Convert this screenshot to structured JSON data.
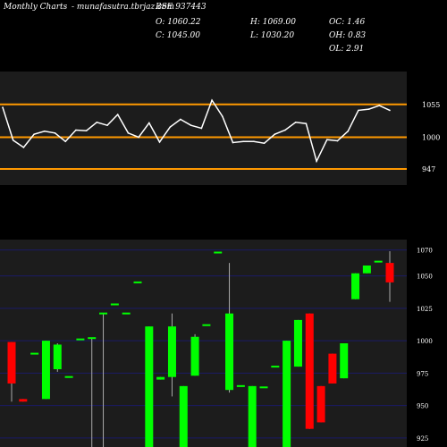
{
  "header": {
    "brand": "Monthly Charts",
    "site": "- munafasutra.tbrjaz.com",
    "symbol": "BSE 937443",
    "open_label": "O: 1060.22",
    "close_label": "C: 1045.00",
    "high_label": "H: 1069.00",
    "low_label": "L: 1030.20",
    "oc_label": "OC: 1.46",
    "oh_label": "OH: 0.83",
    "ol_label": "OL: 2.91"
  },
  "colors": {
    "background": "#000000",
    "line_panel_bg": "#1c1c1c",
    "candle_panel_bg": "#1c1c1c",
    "level_line": "#ff9900",
    "grid_line": "#1a1a66",
    "up_candle": "#00ff00",
    "down_candle": "#ff0000",
    "price_line": "#ffffff"
  },
  "chart_data": [
    {
      "type": "line",
      "reference_levels": [
        1055,
        1000,
        947
      ],
      "tick_labels": [
        "1055",
        "1000",
        "947"
      ],
      "ylim": [
        920,
        1110
      ],
      "series": [
        {
          "values": [
            1050,
            995,
            983,
            1005,
            1010,
            1007,
            993,
            1012,
            1011,
            1025,
            1020,
            1038,
            1007,
            1000,
            1024,
            992,
            1017,
            1030,
            1020,
            1015,
            1062,
            1035,
            991,
            993,
            993,
            990,
            1005,
            1012,
            1025,
            1023,
            960,
            996,
            994,
            1010,
            1045,
            1047,
            1053,
            1045
          ]
        }
      ]
    },
    {
      "type": "candlestick",
      "ylim": [
        918,
        1078
      ],
      "tick_values": [
        1070,
        1050,
        1025,
        1000,
        975,
        950,
        925
      ],
      "tick_labels": [
        "1070",
        "1050",
        "1025",
        "1000",
        "975",
        "950",
        "925"
      ],
      "candles": [
        {
          "open": 999,
          "close": 967,
          "high": 999,
          "low": 953,
          "dir": "down"
        },
        {
          "open": 955,
          "close": 953,
          "high": 955,
          "low": 953,
          "dir": "down"
        },
        {
          "open": 990,
          "close": 990,
          "high": 990,
          "low": 990,
          "dir": "up"
        },
        {
          "open": 955,
          "close": 1000,
          "high": 1000,
          "low": 955,
          "dir": "up"
        },
        {
          "open": 978,
          "close": 997,
          "high": 998,
          "low": 976,
          "dir": "up"
        },
        {
          "open": 972,
          "close": 972,
          "high": 972,
          "low": 972,
          "dir": "up"
        },
        {
          "open": 1001,
          "close": 1001,
          "high": 1001,
          "low": 1001,
          "dir": "up"
        },
        {
          "open": 1002,
          "close": 1002,
          "high": 1002,
          "low": 918,
          "dir": "up"
        },
        {
          "open": 1021,
          "close": 1021,
          "high": 1021,
          "low": 918,
          "dir": "up"
        },
        {
          "open": 1028,
          "close": 1028,
          "high": 1028,
          "low": 1028,
          "dir": "up"
        },
        {
          "open": 1021,
          "close": 1021,
          "high": 1021,
          "low": 1021,
          "dir": "up"
        },
        {
          "open": 1045,
          "close": 1045,
          "high": 1045,
          "low": 1045,
          "dir": "up"
        },
        {
          "open": 918,
          "close": 1011,
          "high": 1011,
          "low": 918,
          "dir": "up"
        },
        {
          "open": 970,
          "close": 972,
          "high": 972,
          "low": 970,
          "dir": "up"
        },
        {
          "open": 972,
          "close": 1011,
          "high": 1021,
          "low": 957,
          "dir": "up"
        },
        {
          "open": 918,
          "close": 965,
          "high": 965,
          "low": 918,
          "dir": "up"
        },
        {
          "open": 973,
          "close": 1003,
          "high": 1005,
          "low": 973,
          "dir": "up"
        },
        {
          "open": 1012,
          "close": 1012,
          "high": 1012,
          "low": 1012,
          "dir": "up"
        },
        {
          "open": 1068,
          "close": 1068,
          "high": 1068,
          "low": 1068,
          "dir": "up"
        },
        {
          "open": 962,
          "close": 1021,
          "high": 1060,
          "low": 960,
          "dir": "up"
        },
        {
          "open": 965,
          "close": 965,
          "high": 965,
          "low": 965,
          "dir": "up"
        },
        {
          "open": 918,
          "close": 965,
          "high": 965,
          "low": 918,
          "dir": "up"
        },
        {
          "open": 964,
          "close": 964,
          "high": 964,
          "low": 964,
          "dir": "up"
        },
        {
          "open": 980,
          "close": 980,
          "high": 980,
          "low": 980,
          "dir": "up"
        },
        {
          "open": 918,
          "close": 1000,
          "high": 1000,
          "low": 918,
          "dir": "up"
        },
        {
          "open": 980,
          "close": 1016,
          "high": 1016,
          "low": 980,
          "dir": "up"
        },
        {
          "open": 1021,
          "close": 932,
          "high": 1021,
          "low": 932,
          "dir": "down"
        },
        {
          "open": 965,
          "close": 937,
          "high": 965,
          "low": 937,
          "dir": "down"
        },
        {
          "open": 990,
          "close": 967,
          "high": 990,
          "low": 967,
          "dir": "down"
        },
        {
          "open": 971,
          "close": 998,
          "high": 998,
          "low": 971,
          "dir": "up"
        },
        {
          "open": 1032,
          "close": 1052,
          "high": 1052,
          "low": 1032,
          "dir": "up"
        },
        {
          "open": 1052,
          "close": 1058,
          "high": 1058,
          "low": 1052,
          "dir": "up"
        },
        {
          "open": 1061,
          "close": 1061,
          "high": 1061,
          "low": 1061,
          "dir": "up"
        },
        {
          "open": 1060,
          "close": 1045,
          "high": 1069,
          "low": 1030,
          "dir": "down"
        }
      ]
    }
  ]
}
